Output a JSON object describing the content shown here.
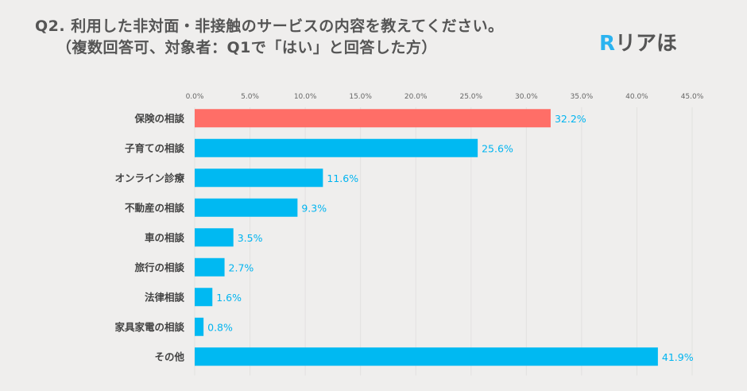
{
  "title": {
    "line1": "Q2. 利用した非対面・非接触のサービスの内容を教えてください。",
    "line2": "（複数回答可、対象者：Q1で「はい」と回答した方）"
  },
  "logo": {
    "r": "R",
    "text": "リアほ"
  },
  "chart_data": {
    "type": "bar",
    "orientation": "horizontal",
    "categories": [
      "保険の相談",
      "子育ての相談",
      "オンライン診療",
      "不動産の相談",
      "車の相談",
      "旅行の相談",
      "法律相談",
      "家具家電の相談",
      "その他"
    ],
    "values": [
      32.2,
      25.6,
      11.6,
      9.3,
      3.5,
      2.7,
      1.6,
      0.8,
      41.9
    ],
    "data_labels": [
      "32.2%",
      "25.6%",
      "11.6%",
      "9.3%",
      "3.5%",
      "2.7%",
      "1.6%",
      "0.8%",
      "41.9%"
    ],
    "xlim": [
      0,
      45
    ],
    "ticks": [
      "0.0%",
      "5.0%",
      "10.0%",
      "15.0%",
      "20.0%",
      "25.0%",
      "30.0%",
      "35.0%",
      "40.0%",
      "45.0%"
    ],
    "axis_position": "top",
    "grid": true,
    "colors": {
      "highlight": "#ff6e67",
      "default": "#00b9f2",
      "label": "#00b4f0"
    },
    "highlight_index": 0
  }
}
